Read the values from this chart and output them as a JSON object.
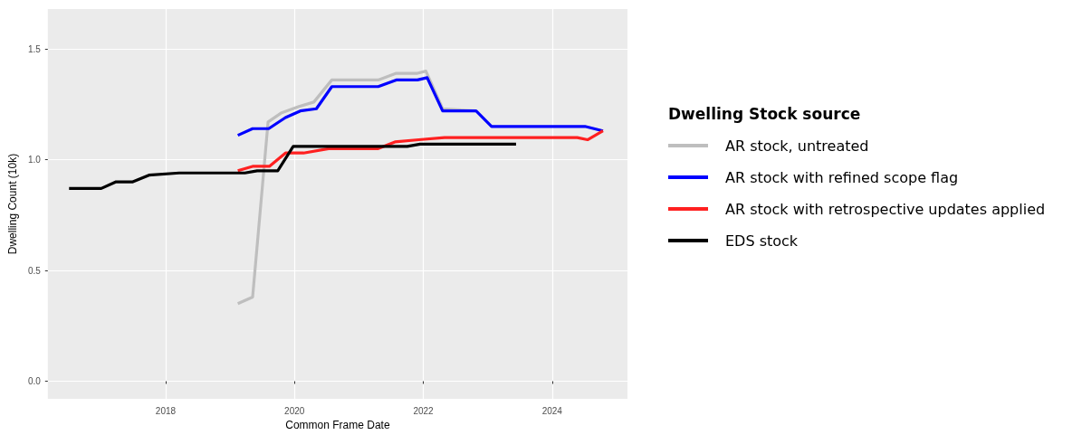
{
  "chart_data": {
    "type": "line",
    "xlabel": "Common Frame Date",
    "ylabel": "Dwelling Count (10k)",
    "legend_title": "Dwelling Stock source",
    "xlim": [
      2016.17,
      2025.17
    ],
    "xticks": [
      2018,
      2020,
      2022,
      2024
    ],
    "ylim": [
      -0.08,
      1.68
    ],
    "yticks": [
      {
        "value": 0,
        "label": "0.0"
      },
      {
        "value": 0.5,
        "label": "0.5"
      },
      {
        "value": 1,
        "label": "1.0"
      },
      {
        "value": 1.5,
        "label": "1.5"
      }
    ],
    "grid": true,
    "legend": "right",
    "marker": "none",
    "line_style": "solid",
    "series": [
      {
        "name": "AR stock, untreated",
        "color": "#bebebe",
        "x": [
          2019.12,
          2019.35,
          2019.59,
          2019.79,
          2020.07,
          2020.3,
          2020.58,
          2021.3,
          2021.58,
          2021.91,
          2022.04,
          2022.3,
          2022.82
        ],
        "values": [
          0.35,
          0.38,
          1.17,
          1.21,
          1.24,
          1.26,
          1.36,
          1.36,
          1.39,
          1.39,
          1.4,
          1.23,
          1.22
        ]
      },
      {
        "name": "AR stock with refined scope flag",
        "color": "#0000ff",
        "x": [
          2019.12,
          2019.35,
          2019.6,
          2019.86,
          2020.09,
          2020.34,
          2020.58,
          2021.3,
          2021.58,
          2021.91,
          2022.06,
          2022.3,
          2022.82,
          2023.06,
          2024.16,
          2024.51,
          2024.79
        ],
        "values": [
          1.11,
          1.14,
          1.14,
          1.19,
          1.22,
          1.23,
          1.33,
          1.33,
          1.36,
          1.36,
          1.37,
          1.22,
          1.22,
          1.15,
          1.15,
          1.15,
          1.13
        ]
      },
      {
        "name": "AR stock with retrospective updates applied",
        "color": "#ff2020",
        "x": [
          2019.12,
          2019.35,
          2019.61,
          2019.86,
          2020.14,
          2020.53,
          2021.3,
          2021.56,
          2021.93,
          2022.33,
          2022.99,
          2024.02,
          2024.16,
          2024.39,
          2024.55,
          2024.79
        ],
        "values": [
          0.95,
          0.97,
          0.97,
          1.03,
          1.03,
          1.05,
          1.05,
          1.08,
          1.09,
          1.1,
          1.1,
          1.1,
          1.1,
          1.1,
          1.09,
          1.13
        ]
      },
      {
        "name": "EDS stock",
        "color": "#000000",
        "x": [
          2016.5,
          2017.0,
          2017.23,
          2017.49,
          2017.74,
          2018.21,
          2019.23,
          2019.42,
          2019.74,
          2019.98,
          2021.75,
          2021.95,
          2023.44
        ],
        "values": [
          0.87,
          0.87,
          0.9,
          0.9,
          0.93,
          0.94,
          0.94,
          0.95,
          0.95,
          1.06,
          1.06,
          1.07,
          1.07
        ]
      }
    ]
  }
}
